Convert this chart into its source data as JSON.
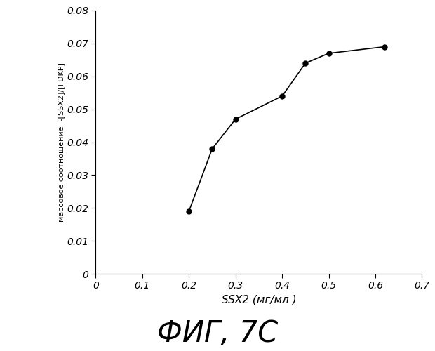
{
  "x": [
    0.2,
    0.25,
    0.3,
    0.4,
    0.45,
    0.5,
    0.62
  ],
  "y": [
    0.019,
    0.038,
    0.047,
    0.054,
    0.064,
    0.067,
    0.069
  ],
  "xlabel": "SSX2 (мг/мл )",
  "ylabel": "массовое соотношение  -[SSX2]/[FDKP]",
  "title": "ФИГ, 7C",
  "xlim": [
    0,
    0.7
  ],
  "ylim": [
    0,
    0.08
  ],
  "xticks": [
    0,
    0.1,
    0.2,
    0.3,
    0.4,
    0.5,
    0.6,
    0.7
  ],
  "yticks": [
    0,
    0.01,
    0.02,
    0.03,
    0.04,
    0.05,
    0.06,
    0.07,
    0.08
  ],
  "line_color": "#000000",
  "marker_color": "#000000",
  "bg_color": "#ffffff"
}
